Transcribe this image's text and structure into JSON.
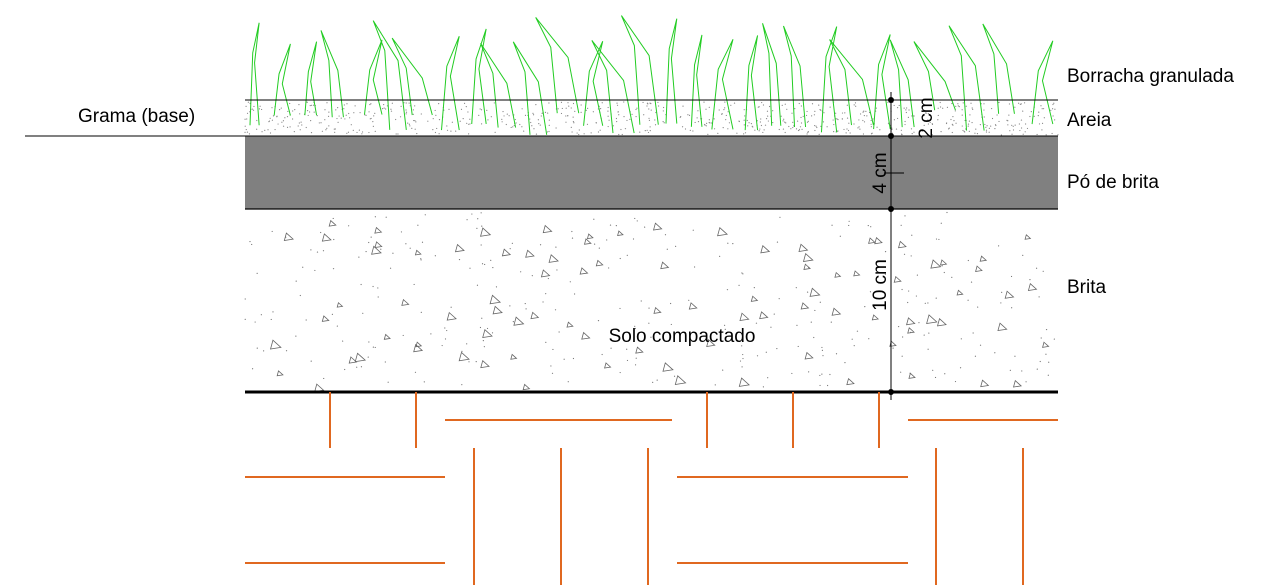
{
  "labels": {
    "grass_base": "Grama (base)",
    "rubber": "Borracha granulada",
    "sand": "Areia",
    "stone_dust": "Pó de brita",
    "gravel": "Brita",
    "soil": "Solo compactado"
  },
  "dimensions": {
    "sand": "2 cm",
    "stone_dust": "4 cm",
    "gravel": "10 cm"
  }
}
